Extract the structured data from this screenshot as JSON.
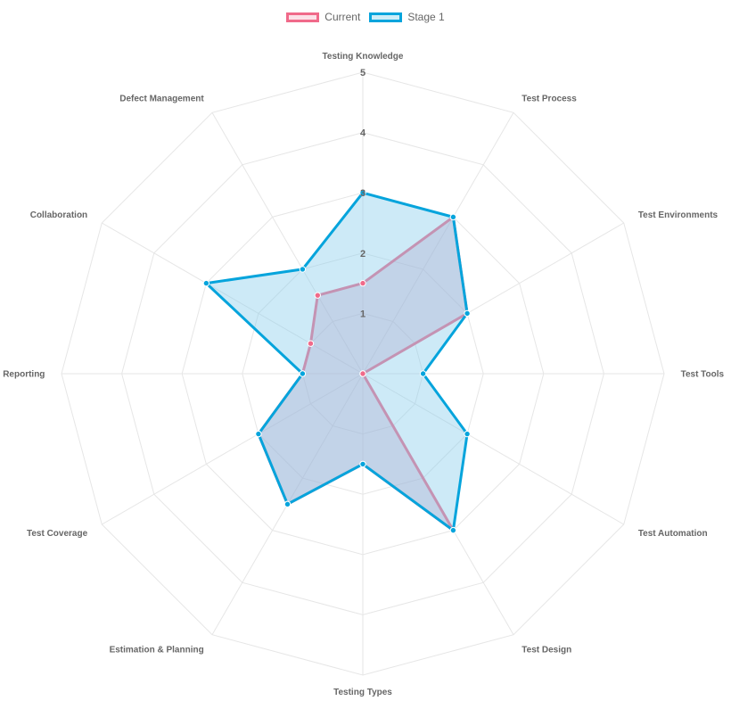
{
  "chart_data": {
    "type": "radar",
    "axes": [
      "Testing Knowledge",
      "Test Process",
      "Test Environments",
      "Test Tools",
      "Test Automation",
      "Test Design",
      "Testing Types",
      "Estimation & Planning",
      "Test Coverage",
      "Reporting",
      "Collaboration",
      "Defect Management"
    ],
    "r_range": [
      0,
      5
    ],
    "ticks": [
      "1",
      "2",
      "3",
      "4",
      "5"
    ],
    "series": [
      {
        "name": "Current",
        "values": [
          1.5,
          3,
          2,
          0,
          0,
          3,
          1.5,
          2.5,
          2,
          1,
          1,
          1.5
        ],
        "color": "#f06a8a",
        "fill": "rgba(200,140,180,0.35)"
      },
      {
        "name": "Stage 1",
        "values": [
          3,
          3,
          2,
          1,
          2,
          3,
          1.5,
          2.5,
          2,
          1,
          3,
          2
        ],
        "color": "#05a4dc",
        "fill": "rgba(135,206,235,0.42)"
      }
    ],
    "legend_position": "top-center"
  }
}
